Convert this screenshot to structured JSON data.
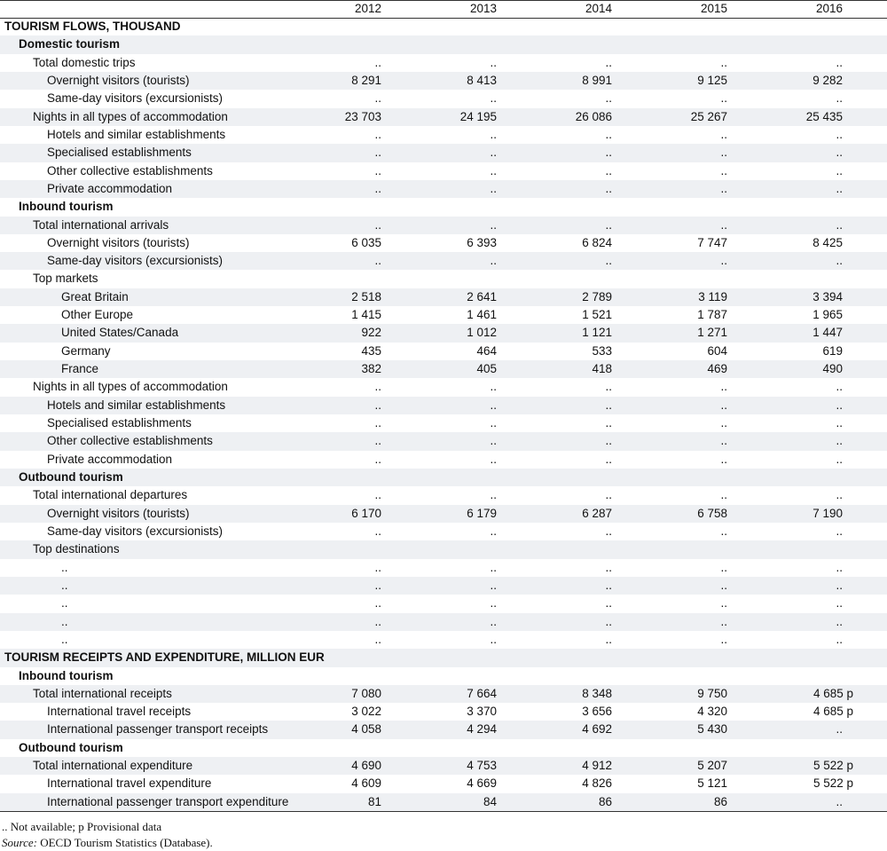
{
  "header": {
    "years": [
      "2012",
      "2013",
      "2014",
      "2015",
      "2016"
    ]
  },
  "sections": [
    {
      "title": "TOURISM FLOWS, THOUSAND",
      "groups": [
        {
          "title": "Domestic tourism",
          "rows": [
            {
              "label": "Total domestic trips",
              "values": [
                "..",
                "..",
                "..",
                "..",
                ".."
              ],
              "rows": [
                {
                  "label": "Overnight visitors (tourists)",
                  "values": [
                    "8 291",
                    "8 413",
                    "8 991",
                    "9 125",
                    "9 282"
                  ]
                },
                {
                  "label": "Same-day visitors (excursionists)",
                  "values": [
                    "..",
                    "..",
                    "..",
                    "..",
                    ".."
                  ]
                }
              ]
            },
            {
              "label": "Nights in all types of accommodation",
              "values": [
                "23 703",
                "24 195",
                "26 086",
                "25 267",
                "25 435"
              ],
              "rows": [
                {
                  "label": "Hotels and similar establishments",
                  "values": [
                    "..",
                    "..",
                    "..",
                    "..",
                    ".."
                  ]
                },
                {
                  "label": "Specialised establishments",
                  "values": [
                    "..",
                    "..",
                    "..",
                    "..",
                    ".."
                  ]
                },
                {
                  "label": "Other collective establishments",
                  "values": [
                    "..",
                    "..",
                    "..",
                    "..",
                    ".."
                  ]
                },
                {
                  "label": "Private accommodation",
                  "values": [
                    "..",
                    "..",
                    "..",
                    "..",
                    ".."
                  ]
                }
              ]
            }
          ]
        },
        {
          "title": "Inbound tourism",
          "rows": [
            {
              "label": "Total international arrivals",
              "values": [
                "..",
                "..",
                "..",
                "..",
                ".."
              ],
              "rows": [
                {
                  "label": "Overnight visitors (tourists)",
                  "values": [
                    "6 035",
                    "6 393",
                    "6 824",
                    "7 747",
                    "8 425"
                  ]
                },
                {
                  "label": "Same-day visitors (excursionists)",
                  "values": [
                    "..",
                    "..",
                    "..",
                    "..",
                    ".."
                  ]
                }
              ]
            },
            {
              "label": "Top markets",
              "rows": [
                {
                  "label": "Great Britain",
                  "values": [
                    "2 518",
                    "2 641",
                    "2 789",
                    "3 119",
                    "3 394"
                  ]
                },
                {
                  "label": "Other Europe",
                  "values": [
                    "1 415",
                    "1 461",
                    "1 521",
                    "1 787",
                    "1 965"
                  ]
                },
                {
                  "label": "United States/Canada",
                  "values": [
                    "922",
                    "1 012",
                    "1 121",
                    "1 271",
                    "1 447"
                  ]
                },
                {
                  "label": "Germany",
                  "values": [
                    "435",
                    "464",
                    "533",
                    "604",
                    "619"
                  ]
                },
                {
                  "label": "France",
                  "values": [
                    "382",
                    "405",
                    "418",
                    "469",
                    "490"
                  ]
                }
              ]
            },
            {
              "label": "Nights in all types of accommodation",
              "values": [
                "..",
                "..",
                "..",
                "..",
                ".."
              ],
              "rows": [
                {
                  "label": "Hotels and similar establishments",
                  "values": [
                    "..",
                    "..",
                    "..",
                    "..",
                    ".."
                  ]
                },
                {
                  "label": "Specialised establishments",
                  "values": [
                    "..",
                    "..",
                    "..",
                    "..",
                    ".."
                  ]
                },
                {
                  "label": "Other collective establishments",
                  "values": [
                    "..",
                    "..",
                    "..",
                    "..",
                    ".."
                  ]
                },
                {
                  "label": "Private accommodation",
                  "values": [
                    "..",
                    "..",
                    "..",
                    "..",
                    ".."
                  ]
                }
              ]
            }
          ]
        },
        {
          "title": "Outbound tourism",
          "rows": [
            {
              "label": "Total international departures",
              "values": [
                "..",
                "..",
                "..",
                "..",
                ".."
              ],
              "rows": [
                {
                  "label": "Overnight visitors (tourists)",
                  "values": [
                    "6 170",
                    "6 179",
                    "6 287",
                    "6 758",
                    "7 190"
                  ]
                },
                {
                  "label": "Same-day visitors (excursionists)",
                  "values": [
                    "..",
                    "..",
                    "..",
                    "..",
                    ".."
                  ]
                }
              ]
            },
            {
              "label": "Top destinations",
              "rows": [
                {
                  "label": "..",
                  "values": [
                    "..",
                    "..",
                    "..",
                    "..",
                    ".."
                  ]
                },
                {
                  "label": "..",
                  "values": [
                    "..",
                    "..",
                    "..",
                    "..",
                    ".."
                  ]
                },
                {
                  "label": "..",
                  "values": [
                    "..",
                    "..",
                    "..",
                    "..",
                    ".."
                  ]
                },
                {
                  "label": "..",
                  "values": [
                    "..",
                    "..",
                    "..",
                    "..",
                    ".."
                  ]
                },
                {
                  "label": "..",
                  "values": [
                    "..",
                    "..",
                    "..",
                    "..",
                    ".."
                  ]
                }
              ]
            }
          ]
        }
      ]
    },
    {
      "title": "TOURISM RECEIPTS AND EXPENDITURE, MILLION EUR",
      "groups": [
        {
          "title": "Inbound tourism",
          "rows": [
            {
              "label": "Total international receipts",
              "values": [
                "7 080",
                "7 664",
                "8 348",
                "9 750",
                "4 685 p"
              ],
              "rows": [
                {
                  "label": "International travel receipts",
                  "values": [
                    "3 022",
                    "3 370",
                    "3 656",
                    "4 320",
                    "4 685 p"
                  ]
                },
                {
                  "label": "International passenger transport receipts",
                  "values": [
                    "4 058",
                    "4 294",
                    "4 692",
                    "5 430",
                    ".."
                  ]
                }
              ]
            }
          ]
        },
        {
          "title": "Outbound tourism",
          "rows": [
            {
              "label": "Total international expenditure",
              "values": [
                "4 690",
                "4 753",
                "4 912",
                "5 207",
                "5 522 p"
              ],
              "rows": [
                {
                  "label": "International travel expenditure",
                  "values": [
                    "4 609",
                    "4 669",
                    "4 826",
                    "5 121",
                    "5 522 p"
                  ]
                },
                {
                  "label": "International passenger transport expenditure",
                  "values": [
                    "81",
                    "84",
                    "86",
                    "86",
                    ".."
                  ]
                }
              ]
            }
          ]
        }
      ]
    }
  ],
  "footer": {
    "note": ".. Not available; p Provisional data",
    "source_label": "Source:",
    "source_text": "OECD Tourism Statistics (Database)."
  }
}
